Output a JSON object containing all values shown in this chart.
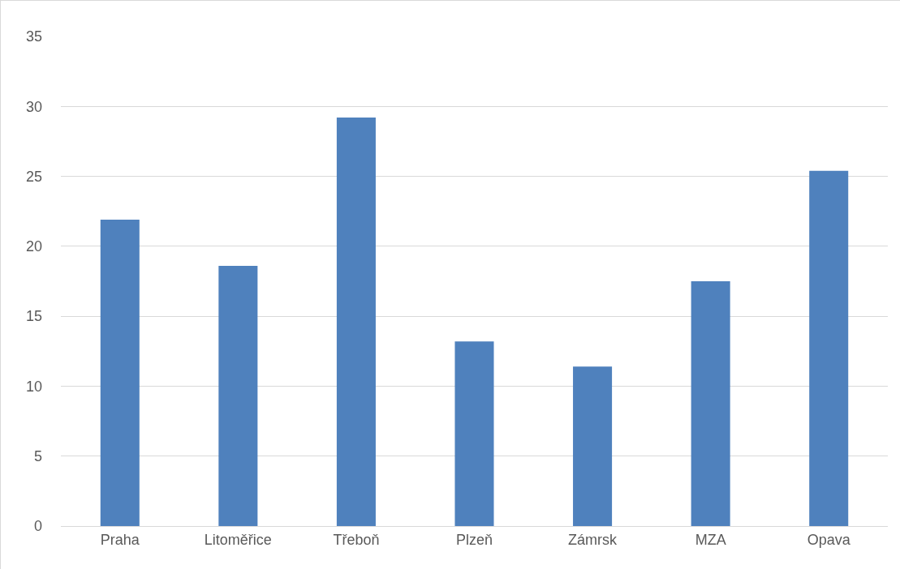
{
  "chart_data": {
    "type": "bar",
    "categories": [
      "Praha",
      "Litoměřice",
      "Třeboň",
      "Plzeň",
      "Zámrsk",
      "MZA",
      "Opava"
    ],
    "values": [
      21.9,
      18.6,
      29.2,
      13.2,
      11.4,
      17.5,
      25.4
    ],
    "color": "#4f81bd",
    "ylim": [
      0,
      35
    ],
    "yticks": [
      0,
      5,
      10,
      15,
      20,
      25,
      30,
      35
    ],
    "grid": "y",
    "legend": false
  }
}
